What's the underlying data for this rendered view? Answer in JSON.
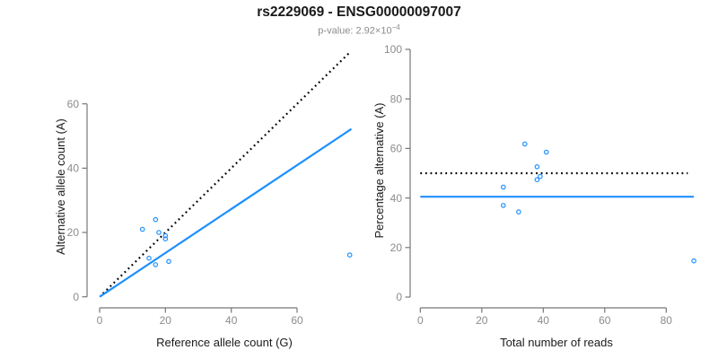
{
  "header": {
    "title": "rs2229069 - ENSG00000097007",
    "pvalue_prefix": "p-value: 2.92×10",
    "pvalue_exponent": "−4"
  },
  "colors": {
    "accent_blue": "#1E90FF",
    "dotted_line_black": "#000000",
    "axis_line_gray": "#777777",
    "tick_label_gray": "#8c8c8c",
    "title_black": "#1a1a1a",
    "subtitle_gray": "#8c8c8c"
  },
  "chart_data": [
    {
      "type": "scatter",
      "name": "allele-count-scatter",
      "xlabel": "Reference allele count (G)",
      "ylabel": "Alternative allele count (A)",
      "xticks": [
        0,
        20,
        40,
        60
      ],
      "yticks": [
        0,
        20,
        40,
        60
      ],
      "xlim": [
        0,
        77
      ],
      "ylim": [
        0,
        80
      ],
      "grid": false,
      "marker": "open-circle",
      "points": [
        {
          "x": 13,
          "y": 21
        },
        {
          "x": 17,
          "y": 24
        },
        {
          "x": 18,
          "y": 20
        },
        {
          "x": 20,
          "y": 19
        },
        {
          "x": 20,
          "y": 18
        },
        {
          "x": 15,
          "y": 12
        },
        {
          "x": 17,
          "y": 10
        },
        {
          "x": 21,
          "y": 11
        },
        {
          "x": 76,
          "y": 13
        }
      ],
      "lines": [
        {
          "name": "identity",
          "style": "dotted",
          "color": "#000000",
          "x1": 1,
          "y1": 1,
          "x2": 76,
          "y2": 76
        },
        {
          "name": "fit",
          "style": "solid",
          "color": "#1E90FF",
          "x1": 0,
          "y1": 0,
          "x2": 76.5,
          "y2": 52.2
        }
      ]
    },
    {
      "type": "scatter",
      "name": "percentage-scatter",
      "xlabel": "Total number of reads",
      "ylabel": "Percentage alternative (A)",
      "xticks": [
        0,
        20,
        40,
        60,
        80
      ],
      "yticks": [
        0,
        20,
        40,
        60,
        80,
        100
      ],
      "xlim": [
        0,
        95
      ],
      "ylim": [
        0,
        104
      ],
      "grid": false,
      "marker": "open-circle",
      "points": [
        {
          "x": 34,
          "y": 61.8
        },
        {
          "x": 41,
          "y": 58.5
        },
        {
          "x": 38,
          "y": 52.6
        },
        {
          "x": 39,
          "y": 48.7
        },
        {
          "x": 38,
          "y": 47.4
        },
        {
          "x": 27,
          "y": 44.4
        },
        {
          "x": 27,
          "y": 37.0
        },
        {
          "x": 32,
          "y": 34.4
        },
        {
          "x": 89,
          "y": 14.6
        }
      ],
      "lines": [
        {
          "name": "fifty-percent",
          "style": "dotted",
          "color": "#000000",
          "x1": 0,
          "y1": 50,
          "x2": 87,
          "y2": 50
        },
        {
          "name": "mean-percentage",
          "style": "solid",
          "color": "#1E90FF",
          "x1": 0,
          "y1": 40.5,
          "x2": 89,
          "y2": 40.5
        }
      ]
    }
  ]
}
